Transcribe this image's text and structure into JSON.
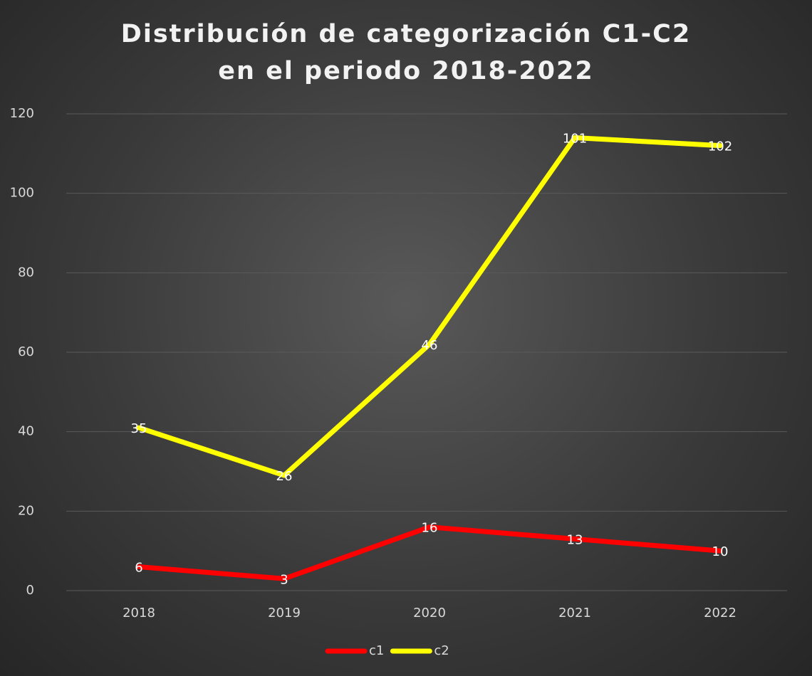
{
  "chart_data": {
    "type": "line",
    "stacked": true,
    "title": "Distribución de categorización C1-C2 en el periodo 2018-2022",
    "categories": [
      "2018",
      "2019",
      "2020",
      "2021",
      "2022"
    ],
    "series": [
      {
        "name": "c1",
        "color": "#ff0000",
        "values": [
          6,
          3,
          16,
          13,
          10
        ]
      },
      {
        "name": "c2",
        "color": "#ffff00",
        "values": [
          35,
          26,
          46,
          101,
          102
        ]
      }
    ],
    "ylim": [
      0,
      120
    ],
    "yticks": [
      0,
      20,
      40,
      60,
      80,
      100,
      120
    ],
    "grid": true,
    "legend": "bottom"
  }
}
